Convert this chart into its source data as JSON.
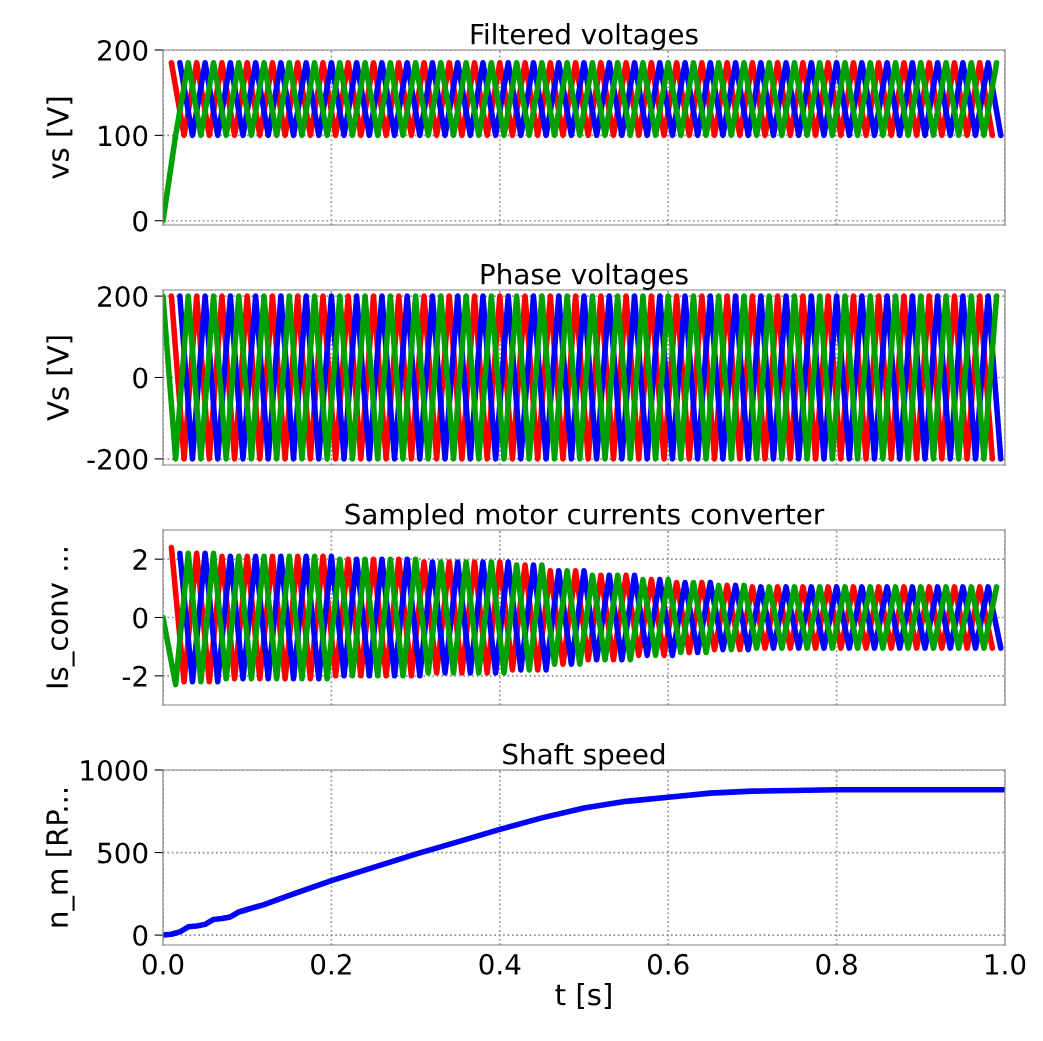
{
  "chart_data": [
    {
      "type": "line",
      "title": "Filtered voltages",
      "ylabel": "vs [V]",
      "xlim": [
        0,
        1
      ],
      "ylim": [
        -5,
        200
      ],
      "yticks": [
        0,
        100,
        200
      ],
      "grid": true,
      "tick_labels": "y",
      "series": [
        {
          "color": "#ff0000",
          "x": [
            0.01,
            0.025,
            0.04,
            0.055,
            0.07,
            0.085,
            0.1,
            0.115,
            0.13,
            0.145,
            0.16,
            0.175,
            0.19,
            0.205,
            0.22,
            0.235,
            0.25,
            0.265,
            0.28,
            0.295,
            0.31,
            0.325,
            0.34,
            0.355,
            0.37,
            0.385,
            0.4,
            0.415,
            0.43,
            0.445,
            0.46,
            0.475,
            0.49,
            0.505,
            0.52,
            0.535,
            0.55,
            0.565,
            0.58,
            0.595,
            0.61,
            0.625,
            0.64,
            0.655,
            0.67,
            0.685,
            0.7,
            0.715,
            0.73,
            0.745,
            0.76,
            0.775,
            0.79,
            0.805,
            0.82,
            0.835,
            0.85,
            0.865,
            0.88,
            0.895,
            0.91,
            0.925,
            0.94,
            0.955,
            0.97,
            0.985
          ],
          "values": [
            185,
            100,
            185,
            100,
            185,
            100,
            185,
            100,
            185,
            100,
            185,
            100,
            185,
            100,
            185,
            100,
            185,
            100,
            185,
            100,
            185,
            100,
            185,
            100,
            185,
            100,
            185,
            100,
            185,
            100,
            185,
            100,
            185,
            100,
            185,
            100,
            185,
            100,
            185,
            100,
            185,
            100,
            185,
            100,
            185,
            100,
            185,
            100,
            185,
            100,
            185,
            100,
            185,
            100,
            185,
            100,
            185,
            100,
            185,
            100,
            185,
            100,
            185,
            100,
            185,
            100
          ]
        },
        {
          "color": "#0000ff",
          "x": [
            0.02,
            0.035,
            0.05,
            0.065,
            0.08,
            0.095,
            0.11,
            0.125,
            0.14,
            0.155,
            0.17,
            0.185,
            0.2,
            0.215,
            0.23,
            0.245,
            0.26,
            0.275,
            0.29,
            0.305,
            0.32,
            0.335,
            0.35,
            0.365,
            0.38,
            0.395,
            0.41,
            0.425,
            0.44,
            0.455,
            0.47,
            0.485,
            0.5,
            0.515,
            0.53,
            0.545,
            0.56,
            0.575,
            0.59,
            0.605,
            0.62,
            0.635,
            0.65,
            0.665,
            0.68,
            0.695,
            0.71,
            0.725,
            0.74,
            0.755,
            0.77,
            0.785,
            0.8,
            0.815,
            0.83,
            0.845,
            0.86,
            0.875,
            0.89,
            0.905,
            0.92,
            0.935,
            0.95,
            0.965,
            0.98,
            0.995
          ],
          "values": [
            185,
            100,
            185,
            100,
            185,
            100,
            185,
            100,
            185,
            100,
            185,
            100,
            185,
            100,
            185,
            100,
            185,
            100,
            185,
            100,
            185,
            100,
            185,
            100,
            185,
            100,
            185,
            100,
            185,
            100,
            185,
            100,
            185,
            100,
            185,
            100,
            185,
            100,
            185,
            100,
            185,
            100,
            185,
            100,
            185,
            100,
            185,
            100,
            185,
            100,
            185,
            100,
            185,
            100,
            185,
            100,
            185,
            100,
            185,
            100,
            185,
            100,
            185,
            100,
            185,
            100
          ]
        },
        {
          "color": "#00a000",
          "x": [
            0,
            0.015,
            0.03,
            0.045,
            0.06,
            0.075,
            0.09,
            0.105,
            0.12,
            0.135,
            0.15,
            0.165,
            0.18,
            0.195,
            0.21,
            0.225,
            0.24,
            0.255,
            0.27,
            0.285,
            0.3,
            0.315,
            0.33,
            0.345,
            0.36,
            0.375,
            0.39,
            0.405,
            0.42,
            0.435,
            0.45,
            0.465,
            0.48,
            0.495,
            0.51,
            0.525,
            0.54,
            0.555,
            0.57,
            0.585,
            0.6,
            0.615,
            0.63,
            0.645,
            0.66,
            0.675,
            0.69,
            0.705,
            0.72,
            0.735,
            0.75,
            0.765,
            0.78,
            0.795,
            0.81,
            0.825,
            0.84,
            0.855,
            0.87,
            0.885,
            0.9,
            0.915,
            0.93,
            0.945,
            0.96,
            0.975,
            0.99
          ],
          "values": [
            0,
            100,
            185,
            100,
            185,
            100,
            185,
            100,
            185,
            100,
            185,
            100,
            185,
            100,
            185,
            100,
            185,
            100,
            185,
            100,
            185,
            100,
            185,
            100,
            185,
            100,
            185,
            100,
            185,
            100,
            185,
            100,
            185,
            100,
            185,
            100,
            185,
            100,
            185,
            100,
            185,
            100,
            185,
            100,
            185,
            100,
            185,
            100,
            185,
            100,
            185,
            100,
            185,
            100,
            185,
            100,
            185,
            100,
            185,
            100,
            185,
            100,
            185,
            100,
            185,
            100,
            185
          ]
        }
      ]
    },
    {
      "type": "line",
      "title": "Phase voltages",
      "ylabel": "Vs [V]",
      "xlim": [
        0,
        1
      ],
      "ylim": [
        -215,
        215
      ],
      "yticks": [
        {
          "value": -200,
          "label": "-200"
        },
        0,
        200
      ],
      "grid": true,
      "tick_labels": "y",
      "series": [
        {
          "color": "#ff0000",
          "x": [
            0.01,
            0.025,
            0.04,
            0.055,
            0.07,
            0.085,
            0.1,
            0.115,
            0.13,
            0.145,
            0.16,
            0.175,
            0.19,
            0.205,
            0.22,
            0.235,
            0.25,
            0.265,
            0.28,
            0.295,
            0.31,
            0.325,
            0.34,
            0.355,
            0.37,
            0.385,
            0.4,
            0.415,
            0.43,
            0.445,
            0.46,
            0.475,
            0.49,
            0.505,
            0.52,
            0.535,
            0.55,
            0.565,
            0.58,
            0.595,
            0.61,
            0.625,
            0.64,
            0.655,
            0.67,
            0.685,
            0.7,
            0.715,
            0.73,
            0.745,
            0.76,
            0.775,
            0.79,
            0.805,
            0.82,
            0.835,
            0.85,
            0.865,
            0.88,
            0.895,
            0.91,
            0.925,
            0.94,
            0.955,
            0.97,
            0.985
          ],
          "values": [
            200,
            -200,
            200,
            -200,
            200,
            -200,
            200,
            -200,
            200,
            -200,
            200,
            -200,
            200,
            -200,
            200,
            -200,
            200,
            -200,
            200,
            -200,
            200,
            -200,
            200,
            -200,
            200,
            -200,
            200,
            -200,
            200,
            -200,
            200,
            -200,
            200,
            -200,
            200,
            -200,
            200,
            -200,
            200,
            -200,
            200,
            -200,
            200,
            -200,
            200,
            -200,
            200,
            -200,
            200,
            -200,
            200,
            -200,
            200,
            -200,
            200,
            -200,
            200,
            -200,
            200,
            -200,
            200,
            -200,
            200,
            -200,
            200,
            -200
          ]
        },
        {
          "color": "#0000ff",
          "x": [
            0.02,
            0.035,
            0.05,
            0.065,
            0.08,
            0.095,
            0.11,
            0.125,
            0.14,
            0.155,
            0.17,
            0.185,
            0.2,
            0.215,
            0.23,
            0.245,
            0.26,
            0.275,
            0.29,
            0.305,
            0.32,
            0.335,
            0.35,
            0.365,
            0.38,
            0.395,
            0.41,
            0.425,
            0.44,
            0.455,
            0.47,
            0.485,
            0.5,
            0.515,
            0.53,
            0.545,
            0.56,
            0.575,
            0.59,
            0.605,
            0.62,
            0.635,
            0.65,
            0.665,
            0.68,
            0.695,
            0.71,
            0.725,
            0.74,
            0.755,
            0.77,
            0.785,
            0.8,
            0.815,
            0.83,
            0.845,
            0.86,
            0.875,
            0.89,
            0.905,
            0.92,
            0.935,
            0.95,
            0.965,
            0.98,
            0.995
          ],
          "values": [
            200,
            -200,
            200,
            -200,
            200,
            -200,
            200,
            -200,
            200,
            -200,
            200,
            -200,
            200,
            -200,
            200,
            -200,
            200,
            -200,
            200,
            -200,
            200,
            -200,
            200,
            -200,
            200,
            -200,
            200,
            -200,
            200,
            -200,
            200,
            -200,
            200,
            -200,
            200,
            -200,
            200,
            -200,
            200,
            -200,
            200,
            -200,
            200,
            -200,
            200,
            -200,
            200,
            -200,
            200,
            -200,
            200,
            -200,
            200,
            -200,
            200,
            -200,
            200,
            -200,
            200,
            -200,
            200,
            -200,
            200,
            -200,
            200,
            -200
          ]
        },
        {
          "color": "#00a000",
          "x": [
            0,
            0.015,
            0.03,
            0.045,
            0.06,
            0.075,
            0.09,
            0.105,
            0.12,
            0.135,
            0.15,
            0.165,
            0.18,
            0.195,
            0.21,
            0.225,
            0.24,
            0.255,
            0.27,
            0.285,
            0.3,
            0.315,
            0.33,
            0.345,
            0.36,
            0.375,
            0.39,
            0.405,
            0.42,
            0.435,
            0.45,
            0.465,
            0.48,
            0.495,
            0.51,
            0.525,
            0.54,
            0.555,
            0.57,
            0.585,
            0.6,
            0.615,
            0.63,
            0.645,
            0.66,
            0.675,
            0.69,
            0.705,
            0.72,
            0.735,
            0.75,
            0.765,
            0.78,
            0.795,
            0.81,
            0.825,
            0.84,
            0.855,
            0.87,
            0.885,
            0.9,
            0.915,
            0.93,
            0.945,
            0.96,
            0.975,
            0.99
          ],
          "values": [
            200,
            -200,
            200,
            -200,
            200,
            -200,
            200,
            -200,
            200,
            -200,
            200,
            -200,
            200,
            -200,
            200,
            -200,
            200,
            -200,
            200,
            -200,
            200,
            -200,
            200,
            -200,
            200,
            -200,
            200,
            -200,
            200,
            -200,
            200,
            -200,
            200,
            -200,
            200,
            -200,
            200,
            -200,
            200,
            -200,
            200,
            -200,
            200,
            -200,
            200,
            -200,
            200,
            -200,
            200,
            -200,
            200,
            -200,
            200,
            -200,
            200,
            -200,
            200,
            -200,
            200,
            -200,
            200,
            -200,
            200,
            -200,
            200,
            -200,
            200
          ]
        }
      ]
    },
    {
      "type": "line",
      "title": "Sampled motor currents converter",
      "ylabel": "Is_conv ...",
      "xlim": [
        0,
        1
      ],
      "ylim": [
        -3,
        3
      ],
      "yticks": [
        {
          "value": -2,
          "label": "-2"
        },
        0,
        2
      ],
      "grid": true,
      "tick_labels": "y",
      "series": [
        {
          "color": "#ff0000",
          "x": [
            0.01,
            0.025,
            0.04,
            0.055,
            0.07,
            0.085,
            0.1,
            0.115,
            0.13,
            0.145,
            0.16,
            0.175,
            0.19,
            0.205,
            0.22,
            0.235,
            0.25,
            0.265,
            0.28,
            0.295,
            0.31,
            0.325,
            0.34,
            0.355,
            0.37,
            0.385,
            0.4,
            0.415,
            0.43,
            0.445,
            0.46,
            0.475,
            0.49,
            0.505,
            0.52,
            0.535,
            0.55,
            0.565,
            0.58,
            0.595,
            0.61,
            0.625,
            0.64,
            0.655,
            0.67,
            0.685,
            0.7,
            0.715,
            0.73,
            0.745,
            0.76,
            0.775,
            0.79,
            0.805,
            0.82,
            0.835,
            0.85,
            0.865,
            0.88,
            0.895,
            0.91,
            0.925,
            0.94,
            0.955,
            0.97,
            0.985
          ],
          "values": [
            2.4,
            -2.2,
            2.2,
            -2.2,
            2.1,
            -2.1,
            2.1,
            -2.1,
            2.1,
            -2.1,
            2.1,
            -2.1,
            2.1,
            -2,
            2,
            -2,
            2,
            -2,
            2,
            -2,
            1.9,
            -1.9,
            1.9,
            -1.9,
            1.9,
            -1.9,
            1.9,
            -1.8,
            1.8,
            -1.8,
            1.6,
            -1.6,
            1.6,
            -1.45,
            1.45,
            -1.45,
            1.45,
            -1.3,
            1.3,
            -1.3,
            1.2,
            -1.2,
            1.2,
            -1.1,
            1.1,
            -1.1,
            1.05,
            -1.05,
            1.05,
            -1.05,
            1.05,
            -1.05,
            1.05,
            -1.05,
            1.05,
            -1.05,
            1.05,
            -1.05,
            1.05,
            -1.05,
            1.05,
            -1.05,
            1.05,
            -1.05,
            1.05,
            -1.05
          ]
        },
        {
          "color": "#0000ff",
          "x": [
            0.02,
            0.035,
            0.05,
            0.065,
            0.08,
            0.095,
            0.11,
            0.125,
            0.14,
            0.155,
            0.17,
            0.185,
            0.2,
            0.215,
            0.23,
            0.245,
            0.26,
            0.275,
            0.29,
            0.305,
            0.32,
            0.335,
            0.35,
            0.365,
            0.38,
            0.395,
            0.41,
            0.425,
            0.44,
            0.455,
            0.47,
            0.485,
            0.5,
            0.515,
            0.53,
            0.545,
            0.56,
            0.575,
            0.59,
            0.605,
            0.62,
            0.635,
            0.65,
            0.665,
            0.68,
            0.695,
            0.71,
            0.725,
            0.74,
            0.755,
            0.77,
            0.785,
            0.8,
            0.815,
            0.83,
            0.845,
            0.86,
            0.875,
            0.89,
            0.905,
            0.92,
            0.935,
            0.95,
            0.965,
            0.98,
            0.995
          ],
          "values": [
            2.2,
            -2.2,
            2.2,
            -2.2,
            2.1,
            -2.1,
            2.1,
            -2.1,
            2.1,
            -2.1,
            2.1,
            -2.1,
            2.1,
            -2,
            2,
            -2,
            2,
            -2,
            2,
            -2,
            1.9,
            -1.9,
            1.9,
            -1.9,
            1.9,
            -1.9,
            1.9,
            -1.8,
            1.8,
            -1.8,
            1.6,
            -1.6,
            1.6,
            -1.45,
            1.45,
            -1.45,
            1.45,
            -1.3,
            1.3,
            -1.3,
            1.2,
            -1.2,
            1.2,
            -1.1,
            1.1,
            -1.1,
            1.05,
            -1.05,
            1.05,
            -1.05,
            1.05,
            -1.05,
            1.05,
            -1.05,
            1.05,
            -1.05,
            1.05,
            -1.05,
            1.05,
            -1.05,
            1.05,
            -1.05,
            1.05,
            -1.05,
            1.05,
            -1.05
          ]
        },
        {
          "color": "#00a000",
          "x": [
            0,
            0.015,
            0.03,
            0.045,
            0.06,
            0.075,
            0.09,
            0.105,
            0.12,
            0.135,
            0.15,
            0.165,
            0.18,
            0.195,
            0.21,
            0.225,
            0.24,
            0.255,
            0.27,
            0.285,
            0.3,
            0.315,
            0.33,
            0.345,
            0.36,
            0.375,
            0.39,
            0.405,
            0.42,
            0.435,
            0.45,
            0.465,
            0.48,
            0.495,
            0.51,
            0.525,
            0.54,
            0.555,
            0.57,
            0.585,
            0.6,
            0.615,
            0.63,
            0.645,
            0.66,
            0.675,
            0.69,
            0.705,
            0.72,
            0.735,
            0.75,
            0.765,
            0.78,
            0.795,
            0.81,
            0.825,
            0.84,
            0.855,
            0.87,
            0.885,
            0.9,
            0.915,
            0.93,
            0.945,
            0.96,
            0.975,
            0.99
          ],
          "values": [
            0,
            -2.3,
            2.2,
            -2.2,
            2.2,
            -2.1,
            2.1,
            -2.1,
            2.1,
            -2.1,
            2.1,
            -2.1,
            2.1,
            -2.1,
            2,
            -2,
            2,
            -2,
            2,
            -2,
            2,
            -1.9,
            1.9,
            -1.9,
            1.9,
            -1.9,
            1.9,
            -1.9,
            1.8,
            -1.8,
            1.8,
            -1.6,
            1.6,
            -1.6,
            1.45,
            -1.45,
            1.45,
            -1.45,
            1.3,
            -1.3,
            1.3,
            -1.2,
            1.2,
            -1.2,
            1.1,
            -1.1,
            1.1,
            -1.05,
            1.05,
            -1.05,
            1.05,
            -1.05,
            1.05,
            -1.05,
            1.05,
            -1.05,
            1.05,
            -1.05,
            1.05,
            -1.05,
            1.05,
            -1.05,
            1.05,
            -1.05,
            1.05,
            -1.05,
            1.05
          ]
        }
      ]
    },
    {
      "type": "line",
      "title": "Shaft speed",
      "xlabel": "t [s]",
      "ylabel": "n_m [RP...",
      "xlim": [
        0,
        1
      ],
      "xticks": [
        {
          "value": 0,
          "label": "0.0"
        },
        {
          "value": 0.2,
          "label": "0.2"
        },
        {
          "value": 0.4,
          "label": "0.4"
        },
        {
          "value": 0.6,
          "label": "0.6"
        },
        {
          "value": 0.8,
          "label": "0.8"
        },
        {
          "value": 1,
          "label": "1.0"
        }
      ],
      "ylim": [
        -60,
        1000
      ],
      "yticks": [
        0,
        500,
        1000
      ],
      "grid": true,
      "series": [
        {
          "color": "#0000ff",
          "x": [
            0,
            0.01,
            0.02,
            0.03,
            0.04,
            0.05,
            0.06,
            0.07,
            0.08,
            0.09,
            0.1,
            0.12,
            0.15,
            0.2,
            0.25,
            0.3,
            0.35,
            0.4,
            0.45,
            0.5,
            0.55,
            0.6,
            0.65,
            0.7,
            0.8,
            1.0
          ],
          "values": [
            0,
            5,
            20,
            50,
            55,
            65,
            95,
            100,
            110,
            140,
            155,
            185,
            240,
            330,
            410,
            490,
            565,
            640,
            710,
            770,
            810,
            835,
            860,
            872,
            880,
            880
          ]
        }
      ]
    }
  ]
}
